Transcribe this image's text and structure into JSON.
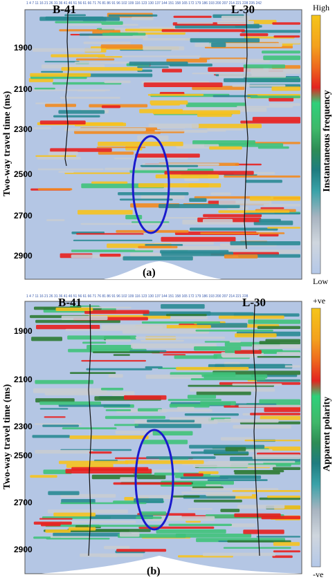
{
  "panels": [
    {
      "id": "a",
      "letter": "(a)",
      "wells": [
        "B-41",
        "L-30"
      ],
      "y_axis_label": "Two-way travel time (ms)",
      "y_ticks": [
        "1900",
        "2100",
        "2300",
        "2500",
        "2700",
        "2900"
      ],
      "trace_numbers": "1 4 7 11 16 21 26 31 36 41 46 51 56 61 66 71 76 81 86 91 96 102 109 116 123 130 137 144 151 158 165 172 179 186 193 200 207 214 221 228 235 242",
      "colorbar_title": "Instantaneous frequency",
      "colorbar_top": "High",
      "colorbar_bottom": "Low"
    },
    {
      "id": "b",
      "letter": "(b)",
      "wells": [
        "B-41",
        "L-30"
      ],
      "y_axis_label": "Two-way travel time (ms)",
      "y_ticks": [
        "1900",
        "2100",
        "2300",
        "2500",
        "2700",
        "2900"
      ],
      "trace_numbers": "1 4 7 11 16 21 26 31 36 41 46 51 56 61 66 71 76 81 86 91 96 102 109 116 123 130 137 144 151 158 165 172 179 186 193 200 207 214 221 228",
      "colorbar_title": "Apparent polarity",
      "colorbar_top": "+ve",
      "colorbar_bottom": "-ve"
    }
  ],
  "colors": {
    "background": "#b4c6e4",
    "gray": "#c8ccd2",
    "teal": "#2a8a94",
    "green": "#3fc27a",
    "dark_green": "#2e7a34",
    "yellow": "#f6c21e",
    "orange": "#f28a1e",
    "red": "#e8201e",
    "anomaly_ellipse": "#1a1acc"
  },
  "colorbar_stops": [
    "#f5c519",
    "#f3a11d",
    "#ee6a1d",
    "#e3241f",
    "#2fd07a",
    "#3fb86a",
    "#2e8d55",
    "#1f7d80",
    "#3aa2a8",
    "#a8b4c0",
    "#cfd6de",
    "#b4c8e8"
  ]
}
